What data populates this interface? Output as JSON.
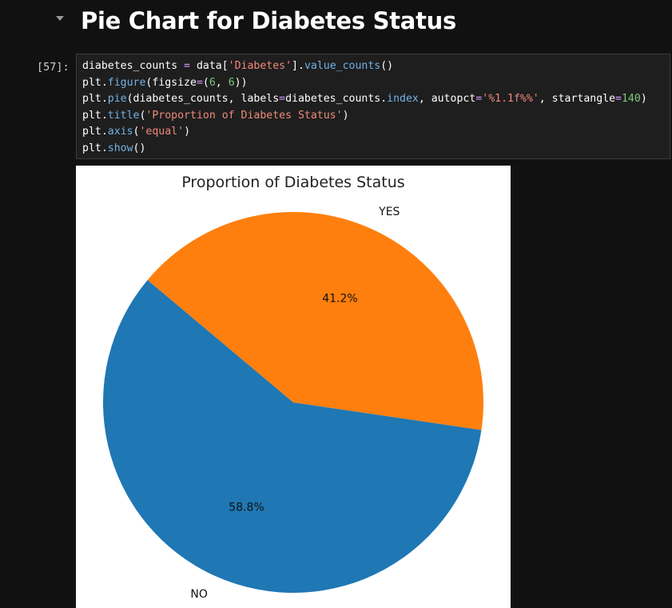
{
  "notebook": {
    "heading": "Pie Chart for Diabetes Status",
    "cell": {
      "execution_count": "[57]:",
      "code_lines": [
        [
          {
            "t": "diabetes_counts ",
            "c": "plain"
          },
          {
            "t": "=",
            "c": "op"
          },
          {
            "t": " data[",
            "c": "plain"
          },
          {
            "t": "'Diabetes'",
            "c": "str"
          },
          {
            "t": "].",
            "c": "plain"
          },
          {
            "t": "value_counts",
            "c": "fn"
          },
          {
            "t": "()",
            "c": "plain"
          }
        ],
        [
          {
            "t": "plt.",
            "c": "plain"
          },
          {
            "t": "figure",
            "c": "fn"
          },
          {
            "t": "(figsize",
            "c": "plain"
          },
          {
            "t": "=",
            "c": "op"
          },
          {
            "t": "(",
            "c": "plain"
          },
          {
            "t": "6",
            "c": "num"
          },
          {
            "t": ", ",
            "c": "plain"
          },
          {
            "t": "6",
            "c": "num"
          },
          {
            "t": "))",
            "c": "plain"
          }
        ],
        [
          {
            "t": "plt.",
            "c": "plain"
          },
          {
            "t": "pie",
            "c": "fn"
          },
          {
            "t": "(diabetes_counts, labels",
            "c": "plain"
          },
          {
            "t": "=",
            "c": "op"
          },
          {
            "t": "diabetes_counts.",
            "c": "plain"
          },
          {
            "t": "index",
            "c": "fn"
          },
          {
            "t": ", autopct",
            "c": "plain"
          },
          {
            "t": "=",
            "c": "op"
          },
          {
            "t": "'%1.1f%%'",
            "c": "str"
          },
          {
            "t": ", startangle",
            "c": "plain"
          },
          {
            "t": "=",
            "c": "op"
          },
          {
            "t": "140",
            "c": "num"
          },
          {
            "t": ")",
            "c": "plain"
          }
        ],
        [
          {
            "t": "plt.",
            "c": "plain"
          },
          {
            "t": "title",
            "c": "fn"
          },
          {
            "t": "(",
            "c": "plain"
          },
          {
            "t": "'Proportion of Diabetes Status'",
            "c": "str"
          },
          {
            "t": ")",
            "c": "plain"
          }
        ],
        [
          {
            "t": "plt.",
            "c": "plain"
          },
          {
            "t": "axis",
            "c": "fn"
          },
          {
            "t": "(",
            "c": "plain"
          },
          {
            "t": "'equal'",
            "c": "str"
          },
          {
            "t": ")",
            "c": "plain"
          }
        ],
        [
          {
            "t": "plt.",
            "c": "plain"
          },
          {
            "t": "show",
            "c": "fn"
          },
          {
            "t": "()",
            "c": "plain"
          }
        ]
      ]
    }
  },
  "colors": {
    "background": "#111111",
    "code_background": "#1e1e1e",
    "function": "#73b1e6",
    "string": "#f08a7a",
    "number": "#7ec87e",
    "operator": "#d8a0ff"
  },
  "icons": {
    "cell_collapse": "chevron-down-icon"
  },
  "chart_data": {
    "type": "pie",
    "title": "Proportion of Diabetes Status",
    "start_angle": 140,
    "slices": [
      {
        "label": "NO",
        "value": 58.8,
        "pct_label": "58.8%",
        "color": "#1f77b4"
      },
      {
        "label": "YES",
        "value": 41.2,
        "pct_label": "41.2%",
        "color": "#ff7f0e"
      }
    ]
  }
}
